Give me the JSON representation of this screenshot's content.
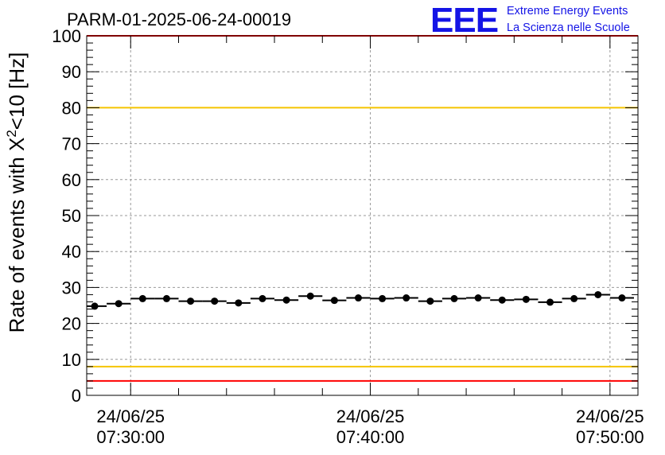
{
  "title": "PARM-01-2025-06-24-00019",
  "logo": {
    "mark": "EEE",
    "line1": "Extreme Energy Events",
    "line2": "La Scienza nelle Scuole"
  },
  "colors": {
    "data": "#000000",
    "limit_inner": "#f5c400",
    "limit_outer": "#ff0000",
    "grid": "#999999",
    "logo": "#1414e6"
  },
  "chart_data": {
    "type": "scatter",
    "title": "PARM-01-2025-06-24-00019",
    "ylabel": {
      "prefix": "Rate of events with ",
      "symbol": "X",
      "superscript": "2",
      "suffix": "<10 [Hz]"
    },
    "xlabel": "",
    "ylim": [
      0,
      100
    ],
    "yticks": [
      "0",
      "10",
      "20",
      "30",
      "40",
      "50",
      "60",
      "70",
      "80",
      "90",
      "100"
    ],
    "x_axis_kind": "time",
    "xlim": [
      "07:28:10",
      "07:51:10"
    ],
    "xticks": [
      {
        "time": "07:30:00",
        "date_label": "24/06/25",
        "time_label": "07:30:00"
      },
      {
        "time": "07:40:00",
        "date_label": "24/06/25",
        "time_label": "07:40:00"
      },
      {
        "time": "07:50:00",
        "date_label": "24/06/25",
        "time_label": "07:50:00"
      }
    ],
    "grid": true,
    "x_bin_width_minutes": 1,
    "series": [
      {
        "x": [
          "07:28:30",
          "07:29:30",
          "07:30:30",
          "07:31:30",
          "07:32:30",
          "07:33:30",
          "07:34:30",
          "07:35:30",
          "07:36:30",
          "07:37:30",
          "07:38:30",
          "07:39:30",
          "07:40:30",
          "07:41:30",
          "07:42:30",
          "07:43:30",
          "07:44:30",
          "07:45:30",
          "07:46:30",
          "07:47:30",
          "07:48:30",
          "07:49:30",
          "07:50:30"
        ],
        "y": [
          24.8,
          25.5,
          26.9,
          26.9,
          26.2,
          26.2,
          25.7,
          26.9,
          26.5,
          27.6,
          26.4,
          27.1,
          26.9,
          27.1,
          26.2,
          26.9,
          27.1,
          26.5,
          26.7,
          25.9,
          26.9,
          28.0,
          27.1
        ]
      }
    ],
    "reference_lines": [
      {
        "y": 100,
        "color": "#ff0000"
      },
      {
        "y": 80,
        "color": "#f5c400"
      },
      {
        "y": 8,
        "color": "#f5c400"
      },
      {
        "y": 4,
        "color": "#ff0000"
      }
    ]
  }
}
